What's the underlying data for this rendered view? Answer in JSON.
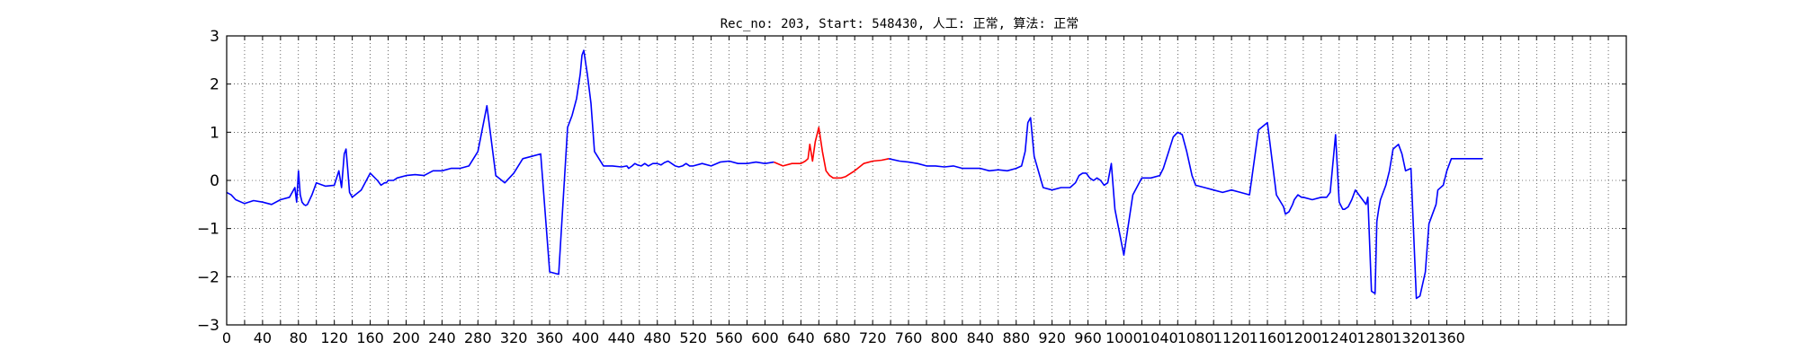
{
  "chart_data": {
    "type": "line",
    "title": "Rec_no: 203, Start: 548430, 人工: 正常, 算法: 正常",
    "xlabel": "",
    "ylabel": "",
    "xlim": [
      0,
      1560
    ],
    "ylim": [
      -3,
      3
    ],
    "grid": true,
    "yticks": [
      -3,
      -2,
      -1,
      0,
      1,
      2,
      3
    ],
    "ytick_labels": [
      "−3",
      "−2",
      "−1",
      "0",
      "1",
      "2",
      "3"
    ],
    "xtick_step": 20,
    "xtick_label_every": 40,
    "xtick_label_last": 1360,
    "series": [
      {
        "color": "#0000ff",
        "segment": "before",
        "x": [
          0,
          5,
          10,
          20,
          30,
          40,
          50,
          60,
          70,
          76,
          78,
          80,
          82,
          84,
          86,
          88,
          90,
          95,
          100,
          110,
          120,
          125,
          128,
          131,
          133,
          135,
          137,
          140,
          150,
          160,
          168,
          172,
          176,
          178,
          180,
          182,
          186,
          190,
          200,
          210,
          220,
          230,
          240,
          250,
          260,
          270,
          280,
          290,
          300,
          310,
          320,
          330,
          340,
          350,
          360,
          370,
          380,
          385,
          390,
          394,
          396,
          398,
          402,
          406,
          410,
          420,
          430,
          440,
          446,
          448,
          452,
          455,
          458,
          462,
          466,
          470,
          475,
          480,
          484,
          488,
          492,
          496,
          500,
          504,
          508,
          512,
          516,
          520,
          530,
          540,
          550,
          560,
          570,
          580,
          590,
          600,
          610
        ],
        "y": [
          -0.25,
          -0.3,
          -0.4,
          -0.48,
          -0.42,
          -0.45,
          -0.5,
          -0.4,
          -0.35,
          -0.15,
          -0.45,
          0.2,
          -0.3,
          -0.45,
          -0.5,
          -0.52,
          -0.5,
          -0.3,
          -0.05,
          -0.12,
          -0.1,
          0.2,
          -0.15,
          0.55,
          0.65,
          0.2,
          -0.25,
          -0.35,
          -0.2,
          0.15,
          0.0,
          -0.1,
          -0.05,
          -0.05,
          0.0,
          0.0,
          0.0,
          0.05,
          0.1,
          0.12,
          0.1,
          0.2,
          0.2,
          0.25,
          0.25,
          0.3,
          0.6,
          1.55,
          0.1,
          -0.05,
          0.15,
          0.45,
          0.5,
          0.55,
          -1.9,
          -1.95,
          1.1,
          1.35,
          1.7,
          2.2,
          2.6,
          2.7,
          2.2,
          1.6,
          0.6,
          0.3,
          0.3,
          0.28,
          0.3,
          0.25,
          0.3,
          0.35,
          0.32,
          0.3,
          0.35,
          0.3,
          0.35,
          0.35,
          0.32,
          0.37,
          0.4,
          0.35,
          0.3,
          0.28,
          0.3,
          0.35,
          0.3,
          0.3,
          0.35,
          0.3,
          0.38,
          0.4,
          0.35,
          0.35,
          0.38,
          0.35,
          0.38
        ]
      },
      {
        "color": "#ff0000",
        "segment": "highlighted",
        "x": [
          610,
          620,
          630,
          640,
          645,
          648,
          650,
          653,
          656,
          660,
          664,
          668,
          672,
          676,
          680,
          685,
          690,
          700,
          710,
          720,
          730,
          738
        ],
        "y": [
          0.38,
          0.3,
          0.35,
          0.35,
          0.4,
          0.45,
          0.75,
          0.4,
          0.8,
          1.1,
          0.6,
          0.2,
          0.1,
          0.05,
          0.05,
          0.05,
          0.08,
          0.2,
          0.35,
          0.4,
          0.42,
          0.45
        ]
      },
      {
        "color": "#0000ff",
        "segment": "after",
        "x": [
          738,
          750,
          760,
          770,
          780,
          790,
          800,
          810,
          820,
          830,
          840,
          850,
          860,
          870,
          880,
          886,
          890,
          893,
          896,
          900,
          910,
          920,
          930,
          940,
          946,
          950,
          954,
          958,
          962,
          966,
          968,
          970,
          974,
          976,
          978,
          982,
          986,
          990,
          1000,
          1010,
          1020,
          1030,
          1040,
          1044,
          1050,
          1055,
          1060,
          1065,
          1070,
          1076,
          1080,
          1090,
          1100,
          1110,
          1120,
          1130,
          1140,
          1150,
          1160,
          1170,
          1178,
          1180,
          1184,
          1188,
          1190,
          1194,
          1198,
          1200,
          1210,
          1220,
          1226,
          1230,
          1234,
          1236,
          1240,
          1244,
          1246,
          1250,
          1254,
          1258,
          1262,
          1266,
          1270,
          1272,
          1276,
          1280,
          1282,
          1284,
          1286,
          1288,
          1292,
          1296,
          1300,
          1306,
          1310,
          1314,
          1320,
          1326,
          1330,
          1336,
          1340,
          1348,
          1350,
          1356,
          1360,
          1365,
          1370,
          1375,
          1380,
          1385,
          1390,
          1395,
          1400
        ],
        "y": [
          0.45,
          0.4,
          0.38,
          0.35,
          0.3,
          0.3,
          0.28,
          0.3,
          0.25,
          0.25,
          0.25,
          0.2,
          0.22,
          0.2,
          0.25,
          0.3,
          0.6,
          1.2,
          1.3,
          0.5,
          -0.15,
          -0.2,
          -0.15,
          -0.15,
          -0.05,
          0.1,
          0.15,
          0.15,
          0.05,
          0.0,
          0.02,
          0.05,
          0.0,
          -0.05,
          -0.1,
          -0.05,
          0.35,
          -0.6,
          -1.55,
          -0.3,
          0.05,
          0.05,
          0.1,
          0.25,
          0.6,
          0.9,
          1.0,
          0.95,
          0.6,
          0.1,
          -0.1,
          -0.15,
          -0.2,
          -0.25,
          -0.2,
          -0.25,
          -0.3,
          1.05,
          1.2,
          -0.3,
          -0.55,
          -0.7,
          -0.65,
          -0.5,
          -0.4,
          -0.3,
          -0.35,
          -0.35,
          -0.4,
          -0.35,
          -0.35,
          -0.25,
          0.55,
          0.95,
          -0.45,
          -0.6,
          -0.6,
          -0.55,
          -0.4,
          -0.2,
          -0.3,
          -0.4,
          -0.5,
          -0.35,
          -2.3,
          -2.35,
          -0.85,
          -0.6,
          -0.4,
          -0.3,
          -0.1,
          0.2,
          0.65,
          0.75,
          0.55,
          0.2,
          0.25,
          -2.45,
          -2.4,
          -1.9,
          -0.9,
          -0.5,
          -0.2,
          -0.1,
          0.2,
          0.45,
          0.45,
          0.45,
          0.45,
          0.45,
          0.45,
          0.45,
          0.45
        ]
      }
    ]
  }
}
